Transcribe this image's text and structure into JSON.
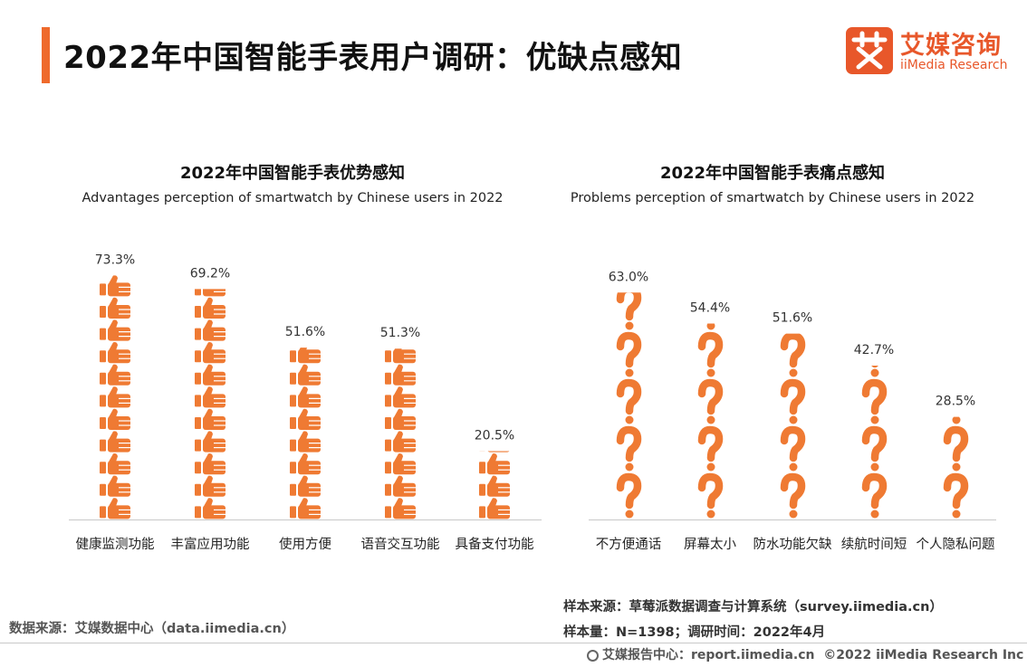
{
  "header": {
    "title": "2022年中国智能手表用户调研：优缺点感知",
    "logo_icon": "ai-logo-icon",
    "logo_cn": "艾媒咨询",
    "logo_en": "iiMedia Research"
  },
  "colors": {
    "accent": "#ef6a2c",
    "bar": "#ef7a33",
    "axis": "#c8c8c8"
  },
  "chart_data": [
    {
      "type": "bar",
      "title": "2022年中国智能手表优势感知",
      "subtitle": "Advantages perception of smartwatch by Chinese users in 2022",
      "mark_icon": "thumbs-up-icon",
      "categories": [
        "健康监测功能",
        "丰富应用功能",
        "使用方便",
        "语音交互功能",
        "具备支付功能"
      ],
      "values": [
        73.3,
        69.2,
        51.6,
        51.3,
        20.5
      ],
      "data_labels": [
        "73.3%",
        "69.2%",
        "51.6%",
        "51.3%",
        "20.5%"
      ],
      "ylim": [
        0,
        100
      ],
      "grid": false
    },
    {
      "type": "bar",
      "title": "2022年中国智能手表痛点感知",
      "subtitle": "Problems perception of smartwatch by Chinese users in 2022",
      "mark_icon": "question-mark-icon",
      "categories": [
        "不方便通话",
        "屏幕太小",
        "防水功能欠缺",
        "续航时间短",
        "个人隐私问题"
      ],
      "values": [
        63.0,
        54.4,
        51.6,
        42.7,
        28.5
      ],
      "data_labels": [
        "63.0%",
        "54.4%",
        "51.6%",
        "42.7%",
        "28.5%"
      ],
      "ylim": [
        0,
        100
      ],
      "grid": false
    }
  ],
  "footer": {
    "source_left": "数据来源：艾媒数据中心（data.iimedia.cn）",
    "sample_source": "样本来源：草莓派数据调查与计算系统（survey.iimedia.cn）",
    "sample_size": "样本量：N=1398；调研时间：2022年4月",
    "globe_icon": "globe-icon",
    "report_center": "艾媒报告中心：report.iimedia.cn",
    "copyright": "©2022 iiMedia Research Inc"
  }
}
